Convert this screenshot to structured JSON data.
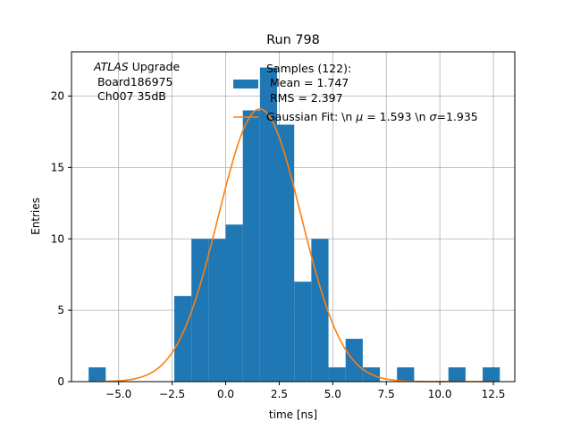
{
  "chart_data": {
    "type": "bar",
    "title": "Run 798",
    "xlabel": "time [ns]",
    "ylabel": "Entries",
    "xlim": [
      -7.2,
      13.5
    ],
    "ylim": [
      0,
      23.1
    ],
    "grid": true,
    "legend_position": "top-right",
    "annotation": {
      "italic": "ATLAS",
      "rest": " Upgrade",
      "line2": " Board186975",
      "line3": " Ch007 35dB"
    },
    "xticks": [
      -5.0,
      -2.5,
      0.0,
      2.5,
      5.0,
      7.5,
      10.0,
      12.5
    ],
    "xtick_labels": [
      "−5.0",
      "−2.5",
      "0.0",
      "2.5",
      "5.0",
      "7.5",
      "10.0",
      "12.5"
    ],
    "yticks": [
      0,
      5,
      10,
      15,
      20
    ],
    "ytick_labels": [
      "0",
      "5",
      "10",
      "15",
      "20"
    ],
    "histogram": {
      "name_lines": [
        "Samples (122):",
        " Mean = 1.747",
        " RMS = 2.397"
      ],
      "color": "#1f77b4",
      "bins": [
        {
          "x0": -6.4,
          "x1": -5.6,
          "count": 1
        },
        {
          "x0": -2.4,
          "x1": -1.6,
          "count": 6
        },
        {
          "x0": -1.6,
          "x1": -0.8,
          "count": 10
        },
        {
          "x0": -0.8,
          "x1": 0.0,
          "count": 10
        },
        {
          "x0": 0.0,
          "x1": 0.8,
          "count": 11
        },
        {
          "x0": 0.8,
          "x1": 1.6,
          "count": 19
        },
        {
          "x0": 1.6,
          "x1": 2.4,
          "count": 22
        },
        {
          "x0": 2.4,
          "x1": 3.2,
          "count": 18
        },
        {
          "x0": 3.2,
          "x1": 4.0,
          "count": 7
        },
        {
          "x0": 4.0,
          "x1": 4.8,
          "count": 10
        },
        {
          "x0": 4.8,
          "x1": 5.6,
          "count": 1
        },
        {
          "x0": 5.6,
          "x1": 6.4,
          "count": 3
        },
        {
          "x0": 6.4,
          "x1": 7.2,
          "count": 1
        },
        {
          "x0": 8.0,
          "x1": 8.8,
          "count": 1
        },
        {
          "x0": 10.4,
          "x1": 11.2,
          "count": 1
        },
        {
          "x0": 12.0,
          "x1": 12.8,
          "count": 1
        }
      ]
    },
    "fit": {
      "name_prefix": "Gaussian Fit: \\n ",
      "name_mu_symbol": "μ",
      "name_mu_value": " = 1.593 \\n ",
      "name_sigma_symbol": "σ",
      "name_sigma_value": "=1.935",
      "color": "#ff7f0e",
      "amplitude": 19.1,
      "mu": 1.593,
      "sigma": 1.935,
      "x_range": [
        -6.0,
        12.5
      ]
    }
  }
}
